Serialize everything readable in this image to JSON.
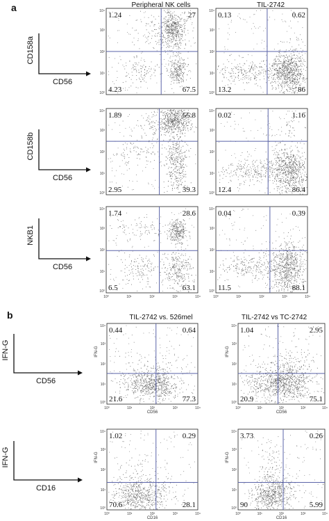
{
  "figure": {
    "panel_a_letter": "a",
    "panel_b_letter": "b",
    "column_titles_a": [
      "Peripheral NK cells",
      "TIL-2742"
    ],
    "column_titles_b": [
      "TIL-2742 vs. 526mel",
      "TIL-2742 vs TC-2742"
    ]
  },
  "colors": {
    "gate": "#5a63a8",
    "dots": "#333333",
    "frame": "#222222"
  },
  "chart_data": [
    {
      "type": "scatter",
      "panel": "a",
      "column": "Peripheral NK cells",
      "x_marker": "CD56",
      "y_marker": "CD158a",
      "xlim": [
        1,
        10000
      ],
      "ylim": [
        1,
        10000
      ],
      "scale": "log",
      "quadrants": {
        "upper_left": "1.24",
        "upper_right": "27",
        "lower_left": "4.23",
        "lower_right": "67.5"
      }
    },
    {
      "type": "scatter",
      "panel": "a",
      "column": "TIL-2742",
      "x_marker": "CD56",
      "y_marker": "CD158a",
      "xlim": [
        1,
        10000
      ],
      "ylim": [
        1,
        10000
      ],
      "scale": "log",
      "quadrants": {
        "upper_left": "0.13",
        "upper_right": "0.62",
        "lower_left": "13.2",
        "lower_right": "86"
      }
    },
    {
      "type": "scatter",
      "panel": "a",
      "column": "Peripheral NK cells",
      "x_marker": "CD56",
      "y_marker": "CD158b",
      "xlim": [
        1,
        10000
      ],
      "ylim": [
        1,
        10000
      ],
      "scale": "log",
      "quadrants": {
        "upper_left": "1.89",
        "upper_right": "55.8",
        "lower_left": "2.95",
        "lower_right": "39.3"
      }
    },
    {
      "type": "scatter",
      "panel": "a",
      "column": "TIL-2742",
      "x_marker": "CD56",
      "y_marker": "CD158b",
      "xlim": [
        1,
        10000
      ],
      "ylim": [
        1,
        10000
      ],
      "scale": "log",
      "quadrants": {
        "upper_left": "0.02",
        "upper_right": "1.16",
        "lower_left": "12.4",
        "lower_right": "86.4"
      }
    },
    {
      "type": "scatter",
      "panel": "a",
      "column": "Peripheral NK cells",
      "x_marker": "CD56",
      "y_marker": "NKB1",
      "xlim": [
        1,
        10000
      ],
      "ylim": [
        1,
        10000
      ],
      "scale": "log",
      "quadrants": {
        "upper_left": "1.74",
        "upper_right": "28.6",
        "lower_left": "6.5",
        "lower_right": "63.1"
      }
    },
    {
      "type": "scatter",
      "panel": "a",
      "column": "TIL-2742",
      "x_marker": "CD56",
      "y_marker": "NKB1",
      "xlim": [
        1,
        10000
      ],
      "ylim": [
        1,
        10000
      ],
      "scale": "log",
      "quadrants": {
        "upper_left": "0.04",
        "upper_right": "0.39",
        "lower_left": "11.5",
        "lower_right": "88.1"
      }
    },
    {
      "type": "scatter",
      "panel": "b",
      "column": "TIL-2742 vs. 526mel",
      "x_marker": "CD56",
      "y_marker": "IFN-G",
      "xlabel": "CD56",
      "ylabel": "IFN-G",
      "xlim": [
        1,
        10000
      ],
      "ylim": [
        1,
        10000
      ],
      "scale": "log",
      "quadrants": {
        "upper_left": "0.44",
        "upper_right": "0.64",
        "lower_left": "21.6",
        "lower_right": "77.3"
      }
    },
    {
      "type": "scatter",
      "panel": "b",
      "column": "TIL-2742 vs TC-2742",
      "x_marker": "CD56",
      "y_marker": "IFN-G",
      "xlabel": "CD56",
      "ylabel": "IFN-G",
      "xlim": [
        1,
        10000
      ],
      "ylim": [
        1,
        10000
      ],
      "scale": "log",
      "quadrants": {
        "upper_left": "1.04",
        "upper_right": "2.95",
        "lower_left": "20.9",
        "lower_right": "75.1"
      }
    },
    {
      "type": "scatter",
      "panel": "b",
      "column": "TIL-2742 vs. 526mel",
      "x_marker": "CD16",
      "y_marker": "IFN-G",
      "xlabel": "CD16",
      "ylabel": "IFN-G",
      "xlim": [
        1,
        10000
      ],
      "ylim": [
        1,
        10000
      ],
      "scale": "log",
      "quadrants": {
        "upper_left": "1.02",
        "upper_right": "0.29",
        "lower_left": "70.6",
        "lower_right": "28.1"
      }
    },
    {
      "type": "scatter",
      "panel": "b",
      "column": "TIL-2742 vs TC-2742",
      "x_marker": "CD16",
      "y_marker": "IFN-G",
      "xlabel": "CD16",
      "ylabel": "IFN-G",
      "xlim": [
        1,
        10000
      ],
      "ylim": [
        1,
        10000
      ],
      "scale": "log",
      "quadrants": {
        "upper_left": "3.73",
        "upper_right": "0.26",
        "lower_left": "90",
        "lower_right": "5.99"
      }
    }
  ]
}
